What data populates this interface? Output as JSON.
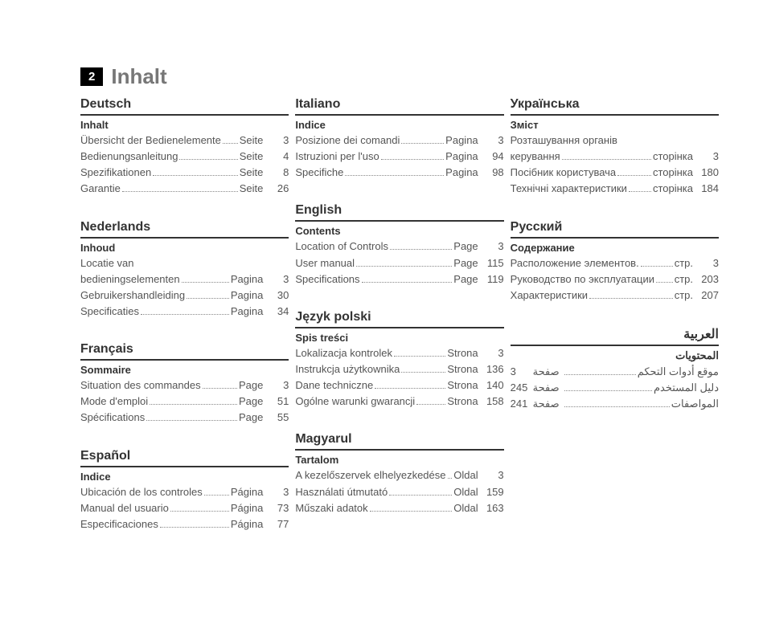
{
  "header": {
    "pagenum": "2",
    "title": "Inhalt"
  },
  "col1": [
    {
      "lang": "Deutsch",
      "sub": "Inhalt",
      "rows": [
        {
          "label": "Übersicht der Bedienelemente",
          "unit": "Seite",
          "num": "3"
        },
        {
          "label": "Bedienungsanleitung",
          "unit": "Seite",
          "num": "4"
        },
        {
          "label": "Spezifikationen",
          "unit": "Seite",
          "num": "8"
        },
        {
          "label": "Garantie",
          "unit": "Seite",
          "num": "26"
        }
      ]
    },
    {
      "lang": "Nederlands",
      "sub": "Inhoud",
      "rows": [
        {
          "label": "Locatie van",
          "nobreak": true
        },
        {
          "label": "bedieningselementen",
          "unit": "Pagina",
          "num": "3"
        },
        {
          "label": "Gebruikershandleiding",
          "unit": "Pagina",
          "num": "30"
        },
        {
          "label": "Specificaties",
          "unit": "Pagina",
          "num": "34"
        }
      ]
    },
    {
      "lang": "Français",
      "sub": "Sommaire",
      "rows": [
        {
          "label": "Situation des commandes",
          "unit": "Page",
          "num": "3"
        },
        {
          "label": "Mode d'emploi",
          "unit": "Page",
          "num": "51"
        },
        {
          "label": "Spécifications",
          "unit": "Page",
          "num": "55"
        }
      ]
    },
    {
      "lang": "Español",
      "sub": "Indice",
      "rows": [
        {
          "label": "Ubicación de los controles",
          "unit": "Página",
          "num": "3"
        },
        {
          "label": "Manual del usuario",
          "unit": "Página",
          "num": "73"
        },
        {
          "label": "Especificaciones",
          "unit": "Página",
          "num": "77"
        }
      ]
    }
  ],
  "col2": [
    {
      "lang": "Italiano",
      "sub": "Indice",
      "rows": [
        {
          "label": "Posizione dei comandi",
          "unit": "Pagina",
          "num": "3"
        },
        {
          "label": "Istruzioni per l'uso",
          "unit": "Pagina",
          "num": "94"
        },
        {
          "label": "Specifiche",
          "unit": "Pagina",
          "num": "98"
        }
      ]
    },
    {
      "lang": "English",
      "sub": "Contents",
      "rows": [
        {
          "label": "Location of Controls",
          "unit": "Page",
          "num": "3"
        },
        {
          "label": "User manual",
          "unit": "Page",
          "num": "115"
        },
        {
          "label": "Specifications",
          "unit": "Page",
          "num": "119"
        }
      ]
    },
    {
      "lang": "Język polski",
      "sub": "Spis treści",
      "rows": [
        {
          "label": "Lokalizacja kontrolek",
          "unit": "Strona",
          "num": "3"
        },
        {
          "label": "Instrukcja użytkownika",
          "unit": "Strona",
          "num": "136"
        },
        {
          "label": "Dane techniczne",
          "unit": "Strona",
          "num": "140"
        },
        {
          "label": "Ogólne warunki gwarancji",
          "unit": "Strona",
          "num": "158"
        }
      ]
    },
    {
      "lang": "Magyarul",
      "sub": "Tartalom",
      "rows": [
        {
          "label": "A kezelőszervek elhelyezkedése",
          "unit": "Oldal",
          "num": "3",
          "tight": true
        },
        {
          "label": "Használati útmutató",
          "unit": "Oldal",
          "num": "159"
        },
        {
          "label": "Műszaki adatok",
          "unit": "Oldal",
          "num": "163"
        }
      ]
    }
  ],
  "col3": [
    {
      "lang": "Українська",
      "sub": "Зміст",
      "rows": [
        {
          "label": "Розташування органів",
          "nobreak": true
        },
        {
          "label": "керування",
          "unit": "сторінка",
          "num": "3"
        },
        {
          "label": "Посібник користувача",
          "unit": "сторінка",
          "num": "180"
        },
        {
          "label": "Технічні характеристики",
          "unit": "сторінка",
          "num": "184"
        }
      ]
    },
    {
      "lang": "Русский",
      "sub": "Содержание",
      "rows": [
        {
          "label": "Расположение элементов.",
          "unit": "стр.",
          "num": "3"
        },
        {
          "label": "Руководство по эксплуатации",
          "unit": "стр.",
          "num": "203"
        },
        {
          "label": "Характеристики",
          "unit": "стр.",
          "num": "207"
        }
      ]
    },
    {
      "lang": "العربية",
      "sub": "المحتويات",
      "rtl": true,
      "rows": [
        {
          "label": "موقع أدوات التحكم",
          "unit": "صفحة",
          "num": "3"
        },
        {
          "label": "دليل المستخدم",
          "unit": "صفحة",
          "num": "245"
        },
        {
          "label": "المواصفات",
          "unit": "صفحة",
          "num": "241"
        }
      ]
    }
  ]
}
